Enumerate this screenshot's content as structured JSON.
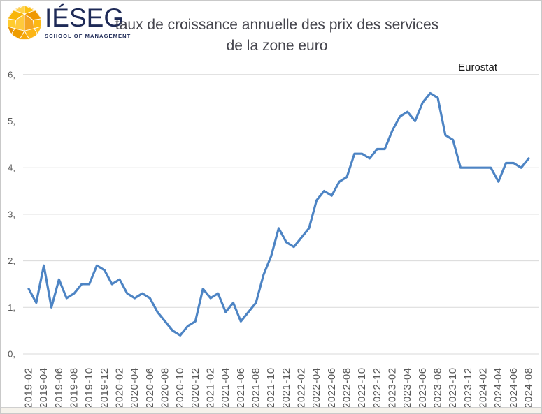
{
  "logo": {
    "brand": "IÉSEG",
    "tagline": "SCHOOL OF MANAGEMENT",
    "brand_color": "#1e2a57"
  },
  "header": {
    "title_line1": "taux de croissance annuelle des prix des services",
    "title_line2": "de la zone euro",
    "source": "Eurostat"
  },
  "chart_data": {
    "type": "line",
    "title": "taux de croissance annuelle des prix des services de la zone euro",
    "source_annotation": "Eurostat",
    "legend": "none",
    "grid": "horizontal",
    "ylim": [
      0,
      6
    ],
    "y_ticks": [
      0,
      1,
      2,
      3,
      4,
      5,
      6
    ],
    "y_tick_labels": [
      "0,",
      "1,",
      "2,",
      "3,",
      "4,",
      "5,",
      "6,"
    ],
    "x_label_every": 2,
    "line_color": "#4d84c4",
    "grid_color": "#d9d9d9",
    "axis_label_color": "#595959",
    "x": [
      "2019-02",
      "2019-03",
      "2019-04",
      "2019-05",
      "2019-06",
      "2019-07",
      "2019-08",
      "2019-09",
      "2019-10",
      "2019-11",
      "2019-12",
      "2020-01",
      "2020-02",
      "2020-03",
      "2020-04",
      "2020-05",
      "2020-06",
      "2020-07",
      "2020-08",
      "2020-09",
      "2020-10",
      "2020-11",
      "2020-12",
      "2021-01",
      "2021-02",
      "2021-03",
      "2021-04",
      "2021-05",
      "2021-06",
      "2021-07",
      "2021-08",
      "2021-09",
      "2021-10",
      "2021-11",
      "2021-12",
      "2022-01",
      "2022-02",
      "2022-03",
      "2022-04",
      "2022-05",
      "2022-06",
      "2022-07",
      "2022-08",
      "2022-09",
      "2022-10",
      "2022-11",
      "2022-12",
      "2023-01",
      "2023-02",
      "2023-03",
      "2023-04",
      "2023-05",
      "2023-06",
      "2023-07",
      "2023-08",
      "2023-09",
      "2023-10",
      "2023-11",
      "2023-12",
      "2024-01",
      "2024-02",
      "2024-03",
      "2024-04",
      "2024-05",
      "2024-06",
      "2024-07",
      "2024-08"
    ],
    "values": [
      1.4,
      1.1,
      1.9,
      1.0,
      1.6,
      1.2,
      1.3,
      1.5,
      1.5,
      1.9,
      1.8,
      1.5,
      1.6,
      1.3,
      1.2,
      1.3,
      1.2,
      0.9,
      0.7,
      0.5,
      0.4,
      0.6,
      0.7,
      1.4,
      1.2,
      1.3,
      0.9,
      1.1,
      0.7,
      0.9,
      1.1,
      1.7,
      2.1,
      2.7,
      2.4,
      2.3,
      2.5,
      2.7,
      3.3,
      3.5,
      3.4,
      3.7,
      3.8,
      4.3,
      4.3,
      4.2,
      4.4,
      4.4,
      4.8,
      5.1,
      5.2,
      5.0,
      5.4,
      5.6,
      5.5,
      4.7,
      4.6,
      4.0,
      4.0,
      4.0,
      4.0,
      4.0,
      3.7,
      4.1,
      4.1,
      4.0,
      4.2
    ]
  }
}
